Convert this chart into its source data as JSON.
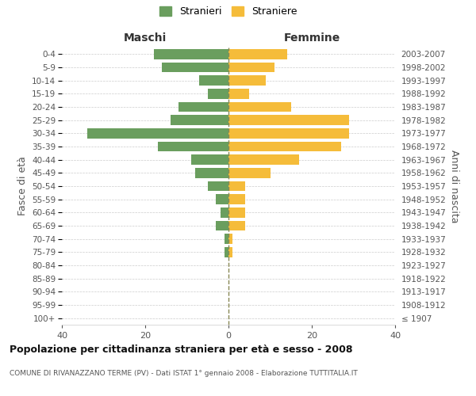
{
  "age_groups": [
    "100+",
    "95-99",
    "90-94",
    "85-89",
    "80-84",
    "75-79",
    "70-74",
    "65-69",
    "60-64",
    "55-59",
    "50-54",
    "45-49",
    "40-44",
    "35-39",
    "30-34",
    "25-29",
    "20-24",
    "15-19",
    "10-14",
    "5-9",
    "0-4"
  ],
  "birth_years": [
    "≤ 1907",
    "1908-1912",
    "1913-1917",
    "1918-1922",
    "1923-1927",
    "1928-1932",
    "1933-1937",
    "1938-1942",
    "1943-1947",
    "1948-1952",
    "1953-1957",
    "1958-1962",
    "1963-1967",
    "1968-1972",
    "1973-1977",
    "1978-1982",
    "1983-1987",
    "1988-1992",
    "1993-1997",
    "1998-2002",
    "2003-2007"
  ],
  "maschi": [
    0,
    0,
    0,
    0,
    0,
    1,
    1,
    3,
    2,
    3,
    5,
    8,
    9,
    17,
    34,
    14,
    12,
    5,
    7,
    16,
    18
  ],
  "femmine": [
    0,
    0,
    0,
    0,
    0,
    1,
    1,
    4,
    4,
    4,
    4,
    10,
    17,
    27,
    29,
    29,
    15,
    5,
    9,
    11,
    14
  ],
  "maschi_color": "#6a9e5e",
  "femmine_color": "#f5bc3a",
  "background_color": "#ffffff",
  "grid_color": "#cccccc",
  "center_line_color": "#888855",
  "ylabel_left": "Fasce di età",
  "ylabel_right": "Anni di nascita",
  "xlabel_left": "Maschi",
  "xlabel_right": "Femmine",
  "xlim": 40,
  "legend_maschi": "Stranieri",
  "legend_femmine": "Straniere",
  "title": "Popolazione per cittadinanza straniera per età e sesso - 2008",
  "subtitle": "COMUNE DI RIVANAZZANO TERME (PV) - Dati ISTAT 1° gennaio 2008 - Elaborazione TUTTITALIA.IT"
}
